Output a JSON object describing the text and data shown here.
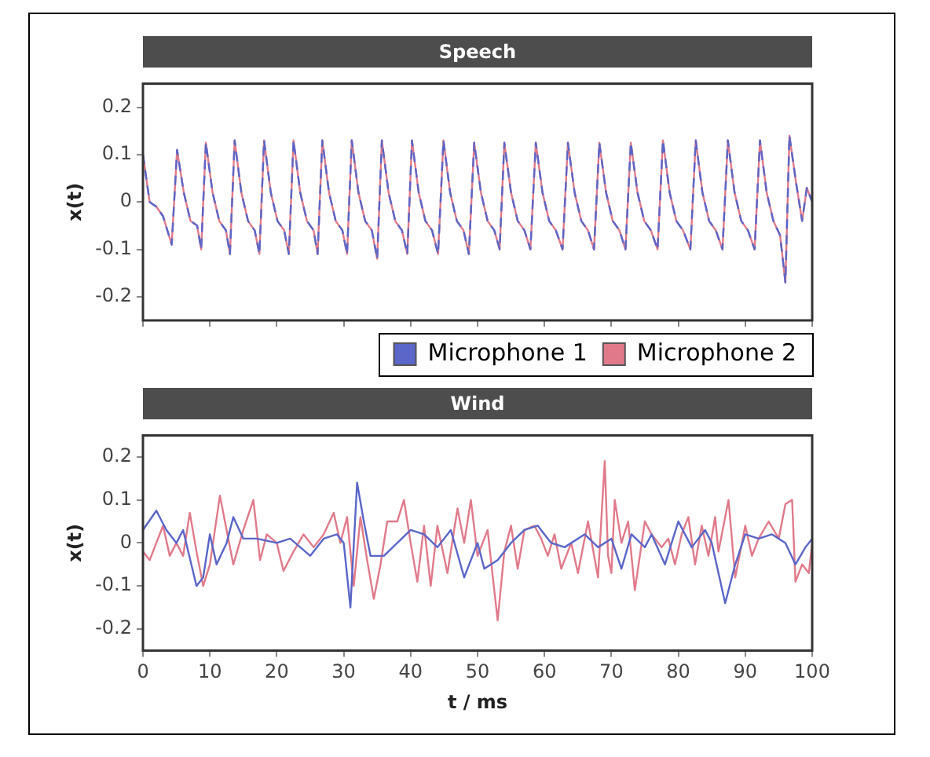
{
  "chart_data": [
    {
      "type": "line",
      "title": "Speech",
      "ylabel": "x(t)",
      "xlim": [
        0,
        100
      ],
      "xticks": [
        0,
        10,
        20,
        30,
        40,
        50,
        60,
        70,
        80,
        90,
        100
      ],
      "ylim": [
        -0.25,
        0.25
      ],
      "yticks": [
        -0.2,
        -0.1,
        0,
        0.1,
        0.2
      ],
      "tick_labels": "y",
      "legend": "bottom right",
      "marker": "none",
      "x": [
        0,
        1,
        2,
        3,
        4.3,
        5.1,
        6.1,
        7.1,
        8.1,
        8.7,
        9.4,
        10.4,
        11.4,
        12.4,
        13.0,
        13.7,
        14.7,
        15.7,
        16.7,
        17.4,
        18.1,
        19.1,
        20.1,
        21.1,
        21.8,
        22.5,
        23.5,
        24.5,
        25.5,
        26.1,
        26.8,
        27.8,
        28.8,
        29.8,
        30.5,
        31.2,
        32.2,
        33.2,
        34.2,
        35.0,
        35.7,
        36.7,
        37.7,
        38.7,
        39.5,
        40.2,
        41.2,
        42.2,
        43.2,
        44.1,
        44.9,
        45.9,
        46.9,
        47.9,
        48.7,
        49.5,
        50.5,
        51.5,
        52.5,
        53.3,
        54.0,
        55.0,
        56.0,
        57.0,
        57.9,
        58.7,
        59.7,
        60.7,
        61.7,
        62.7,
        63.5,
        64.5,
        65.5,
        66.5,
        67.4,
        68.2,
        69.2,
        70.2,
        71.2,
        72.1,
        72.9,
        73.9,
        74.9,
        75.9,
        76.9,
        77.7,
        78.7,
        79.7,
        80.7,
        81.8,
        82.6,
        83.6,
        84.6,
        85.6,
        86.6,
        87.4,
        88.4,
        89.4,
        90.4,
        91.4,
        92.2,
        93.2,
        94.2,
        95.2,
        96.0,
        96.6,
        97.6,
        98.5,
        99.2,
        100
      ],
      "series": [
        {
          "name": "Microphone 1",
          "color": "#5a66c8",
          "line_style": "dashed",
          "values": [
            0.1,
            0,
            -0.01,
            -0.03,
            -0.09,
            0.11,
            0.02,
            -0.04,
            -0.05,
            -0.1,
            0.125,
            0.02,
            -0.04,
            -0.06,
            -0.11,
            0.13,
            0.02,
            -0.04,
            -0.06,
            -0.11,
            0.13,
            0.02,
            -0.04,
            -0.06,
            -0.11,
            0.13,
            0.02,
            -0.04,
            -0.06,
            -0.11,
            0.13,
            0.02,
            -0.04,
            -0.06,
            -0.11,
            0.13,
            0.02,
            -0.04,
            -0.06,
            -0.12,
            0.13,
            0.02,
            -0.04,
            -0.06,
            -0.11,
            0.13,
            0.02,
            -0.04,
            -0.06,
            -0.11,
            0.13,
            0.02,
            -0.04,
            -0.06,
            -0.11,
            0.125,
            0.02,
            -0.04,
            -0.06,
            -0.1,
            0.125,
            0.02,
            -0.04,
            -0.06,
            -0.1,
            0.125,
            0.02,
            -0.04,
            -0.06,
            -0.1,
            0.125,
            0.02,
            -0.04,
            -0.06,
            -0.1,
            0.125,
            0.02,
            -0.04,
            -0.06,
            -0.1,
            0.125,
            0.02,
            -0.04,
            -0.06,
            -0.1,
            0.13,
            0.02,
            -0.04,
            -0.06,
            -0.1,
            0.13,
            0.02,
            -0.04,
            -0.06,
            -0.1,
            0.13,
            0.02,
            -0.04,
            -0.06,
            -0.1,
            0.13,
            0.02,
            -0.04,
            -0.07,
            -0.17,
            0.14,
            0.04,
            -0.04,
            0.03,
            0
          ]
        },
        {
          "name": "Microphone 2",
          "color": "#e07a8a",
          "values": [
            0.1,
            0,
            -0.01,
            -0.03,
            -0.09,
            0.11,
            0.02,
            -0.04,
            -0.05,
            -0.1,
            0.125,
            0.02,
            -0.04,
            -0.06,
            -0.11,
            0.13,
            0.02,
            -0.04,
            -0.06,
            -0.11,
            0.13,
            0.02,
            -0.04,
            -0.06,
            -0.11,
            0.13,
            0.02,
            -0.04,
            -0.06,
            -0.11,
            0.13,
            0.02,
            -0.04,
            -0.06,
            -0.11,
            0.13,
            0.02,
            -0.04,
            -0.06,
            -0.12,
            0.13,
            0.02,
            -0.04,
            -0.06,
            -0.11,
            0.13,
            0.02,
            -0.04,
            -0.06,
            -0.11,
            0.13,
            0.02,
            -0.04,
            -0.06,
            -0.11,
            0.125,
            0.02,
            -0.04,
            -0.06,
            -0.1,
            0.125,
            0.02,
            -0.04,
            -0.06,
            -0.1,
            0.125,
            0.02,
            -0.04,
            -0.06,
            -0.1,
            0.125,
            0.02,
            -0.04,
            -0.06,
            -0.1,
            0.125,
            0.02,
            -0.04,
            -0.06,
            -0.1,
            0.125,
            0.02,
            -0.04,
            -0.06,
            -0.1,
            0.13,
            0.02,
            -0.04,
            -0.06,
            -0.1,
            0.13,
            0.02,
            -0.04,
            -0.06,
            -0.1,
            0.13,
            0.02,
            -0.04,
            -0.06,
            -0.1,
            0.13,
            0.02,
            -0.04,
            -0.07,
            -0.17,
            0.14,
            0.04,
            -0.04,
            0.03,
            0
          ]
        }
      ]
    },
    {
      "type": "line",
      "title": "Wind",
      "xlabel": "t / ms",
      "ylabel": "x(t)",
      "xlim": [
        0,
        100
      ],
      "xticks": [
        0,
        10,
        20,
        30,
        40,
        50,
        60,
        70,
        80,
        90,
        100
      ],
      "ylim": [
        -0.25,
        0.25
      ],
      "yticks": [
        -0.2,
        -0.1,
        0,
        0.1,
        0.2
      ],
      "marker": "none",
      "series": [
        {
          "name": "Microphone 1",
          "color": "#5a66c8",
          "x": [
            0,
            2,
            3.5,
            5,
            6,
            8,
            9,
            10,
            11,
            12.5,
            13.5,
            15,
            17,
            20,
            22,
            25,
            27,
            29,
            30,
            31,
            32,
            33,
            34,
            36,
            38,
            40,
            42,
            44,
            46,
            48,
            50,
            51,
            53,
            55,
            57,
            59,
            61,
            63,
            66,
            68,
            70,
            71.5,
            73,
            75,
            76,
            78,
            79,
            80,
            82,
            84,
            85,
            87,
            88.5,
            90,
            92,
            94,
            96,
            97.5,
            99,
            100
          ],
          "values": [
            0.03,
            0.075,
            0.03,
            0,
            0.03,
            -0.1,
            -0.08,
            0.02,
            -0.05,
            0,
            0.06,
            0.01,
            0.01,
            0,
            0.01,
            -0.03,
            0.01,
            0.02,
            0,
            -0.15,
            0.14,
            0.05,
            -0.03,
            -0.03,
            0,
            0.03,
            0.02,
            -0.01,
            0.03,
            -0.08,
            0,
            -0.06,
            -0.04,
            0,
            0.03,
            0.04,
            0,
            -0.01,
            0.02,
            -0.01,
            0.01,
            -0.06,
            0.02,
            -0.01,
            0.02,
            -0.05,
            0,
            0.05,
            -0.01,
            0.03,
            0,
            -0.14,
            -0.05,
            0.02,
            0.01,
            0.02,
            0,
            -0.05,
            -0.01,
            0.01
          ]
        },
        {
          "name": "Microphone 2",
          "color": "#e07a8a",
          "x": [
            0,
            1,
            3,
            4,
            5,
            6,
            7,
            8,
            9,
            10,
            11.5,
            12.5,
            13.5,
            15,
            16.5,
            17.5,
            18.5,
            20,
            21,
            22.5,
            24,
            25.5,
            27,
            28.5,
            29.5,
            30.5,
            31.5,
            32.5,
            33.5,
            34.5,
            35.5,
            36.5,
            38,
            39,
            40,
            41,
            42,
            43,
            44,
            45.5,
            47,
            48,
            49,
            50,
            51.5,
            53,
            54,
            55,
            56,
            57,
            58.5,
            59.5,
            60.5,
            61.5,
            62.5,
            64,
            65,
            66.5,
            68,
            69,
            69.5,
            70,
            70.5,
            71.5,
            72.5,
            73.5,
            75,
            76,
            77.5,
            78.5,
            79.5,
            80.5,
            81.5,
            82.5,
            83.5,
            84.5,
            85.5,
            86,
            87.5,
            88.5,
            90,
            91,
            92,
            93.5,
            95,
            96,
            97,
            97.5,
            98.5,
            99.5,
            100
          ],
          "values": [
            -0.02,
            -0.04,
            0.04,
            -0.03,
            0,
            -0.03,
            0.07,
            -0.02,
            -0.1,
            -0.05,
            0.11,
            0.03,
            -0.05,
            0.03,
            0.1,
            -0.04,
            0.02,
            0,
            -0.065,
            -0.02,
            0.02,
            -0.01,
            0.02,
            0.07,
            0,
            0.06,
            -0.1,
            0.06,
            -0.04,
            -0.13,
            -0.05,
            0.05,
            0.05,
            0.1,
            0,
            -0.09,
            0.04,
            -0.1,
            0.04,
            -0.07,
            0.08,
            0,
            0.1,
            -0.03,
            0.03,
            -0.18,
            -0.02,
            0.04,
            -0.06,
            0.03,
            0.04,
            0.01,
            -0.03,
            0.02,
            -0.06,
            0,
            -0.07,
            0.05,
            -0.08,
            0.19,
            -0.03,
            -0.07,
            0.1,
            0,
            0.05,
            -0.11,
            0.05,
            0.02,
            -0.01,
            0.01,
            -0.05,
            0.02,
            0.06,
            -0.05,
            0.04,
            -0.03,
            0.06,
            -0.02,
            0.1,
            -0.08,
            0.04,
            -0.03,
            0.01,
            0.05,
            0.01,
            0.09,
            0.1,
            -0.09,
            -0.05,
            -0.07,
            0
          ]
        }
      ]
    }
  ]
}
